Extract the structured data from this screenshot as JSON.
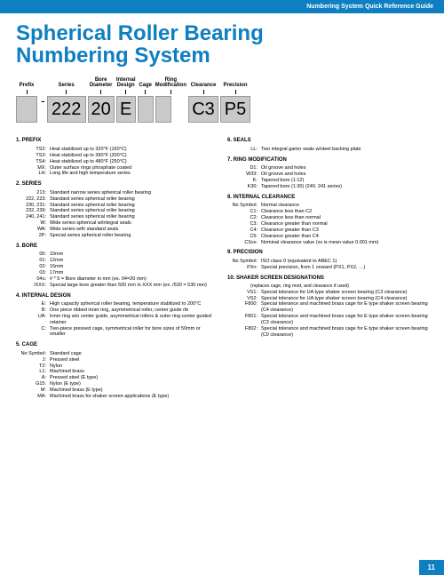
{
  "header": "Numbering System Quick Reference Guide",
  "title_l1": "Spherical Roller Bearing",
  "title_l2": "Numbering System",
  "pageNum": "11",
  "diag": {
    "labels": [
      "Prefix",
      "Series",
      "Bore\nDiameter",
      "Internal\nDesign",
      "Cage",
      "Ring\nModification",
      "Clearance",
      "Precision"
    ],
    "boxes": [
      "",
      "222",
      "20",
      "E",
      "",
      "",
      "C3",
      "P5"
    ]
  },
  "left": [
    {
      "h": "1.   PREFIX",
      "items": [
        [
          "TS2:",
          "Heat stabilized up to 320°F (160°C)"
        ],
        [
          "TS3:",
          "Heat stabilized up to 390°F (200°C)"
        ],
        [
          "TS4:",
          "Heat stabilized up to 480°F (250°C)"
        ],
        [
          "MX:",
          "Outer surface rings phosphate coated"
        ],
        [
          "LH:",
          "Long life and high temperature series"
        ]
      ]
    },
    {
      "h": "2.   SERIES",
      "items": [
        [
          "213:",
          "Standard narrow series spherical roller bearing"
        ],
        [
          "222, 223:",
          "Standard series spherical roller bearing"
        ],
        [
          "230, 231:",
          "Standard series spherical roller bearing"
        ],
        [
          "232, 239:",
          "Standard series spherical roller bearing"
        ],
        [
          "240, 241:",
          "Standard series spherical roller bearing"
        ],
        [
          "W:",
          "Wide series spherical w/integral seals"
        ],
        [
          "WA:",
          "Wide series with standard seals"
        ],
        [
          "2P:",
          "Special series spherical roller bearing"
        ]
      ]
    },
    {
      "h": "3.   BORE",
      "items": [
        [
          "00:",
          "10mm"
        ],
        [
          "01:",
          "12mm"
        ],
        [
          "02:",
          "15mm"
        ],
        [
          "03:",
          "17mm"
        ],
        [
          "04≤:",
          "# * 5 = Bore diameter in mm (ex. 04=20 mm)"
        ],
        [
          "/XXX:",
          "Special large bore greater than 500 mm in XXX mm (ex. /530 = 530 mm)"
        ]
      ]
    },
    {
      "h": "4.   INTERNAL DESIGN",
      "items": [
        [
          "E:",
          "High capacity spherical roller bearing, temperature stabilized to 200°C"
        ],
        [
          "B:",
          "One piece ribbed inner ring, asymmetrical roller, center guide rib"
        ],
        [
          "UA:",
          "Inner ring w/o center guide, asymmetrical rollers & outer ring center guided retainer"
        ],
        [
          "C:",
          "Two-piece pressed cage, symmetrical roller for bore sizes of 50mm or smaller"
        ]
      ]
    },
    {
      "h": "5.   CAGE",
      "items": [
        [
          "No Symbol:",
          "Standard cage"
        ],
        [
          "J:",
          "Pressed steel"
        ],
        [
          "T2:",
          "Nylon"
        ],
        [
          "L1:",
          "Machined brass"
        ],
        [
          "A:",
          "Pressed steel (E type)"
        ],
        [
          "G15:",
          "Nylon (E type)"
        ],
        [
          "M:",
          "Machined brass (E type)"
        ],
        [
          "MA:",
          "Machined brass for shaker screen applications (E type)"
        ]
      ]
    }
  ],
  "right": [
    {
      "h": "6.   SEALS",
      "items": [
        [
          "LL:",
          "Two integral garter seals w/steel backing plate"
        ]
      ]
    },
    {
      "h": "7.   RING MODIFICATION",
      "items": [
        [
          "D1:",
          "Oil groove and holes"
        ],
        [
          "W33:",
          "Oil groove and holes"
        ],
        [
          "K:",
          "Tapered bore (1:12)"
        ],
        [
          "K30:",
          "Tapered bore (1:30) (240, 241 series)"
        ]
      ]
    },
    {
      "h": "8.   INTERNAL CLEARANCE",
      "items": [
        [
          "No Symbol:",
          "Normal clearance"
        ],
        [
          "C1:",
          "Clearance less than C2"
        ],
        [
          "C2:",
          "Clearance less than normal"
        ],
        [
          "C3:",
          "Clearance greater than normal"
        ],
        [
          "C4:",
          "Clearance greater than C3"
        ],
        [
          "C5:",
          "Clearance greater than C4"
        ],
        [
          "CSxx:",
          "Nominal clearance value (xx is mean value 0.001 mm)"
        ]
      ]
    },
    {
      "h": "9.   PRECISION",
      "items": [
        [
          "No Symbol:",
          "ISO class 0 (equivalent to ABEC 1)"
        ],
        [
          "PXn:",
          "Special precision, from 1 onward (PX1, PX2, …)"
        ]
      ]
    },
    {
      "h": "10.  SHAKER SCREEN DESIGNATIONS",
      "sub": "(replaces cage, ring mod, and clearance if used)",
      "items": [
        [
          "VS1:",
          "Special tolerance for UA type shaker screen bearing (C3 clearance)"
        ],
        [
          "VS2:",
          "Special tolerance for UA type shaker screen bearing (C4 clearance)"
        ],
        [
          "F800:",
          "Special tolerance and machined brass cage for E type shaker screen bearing (C4 clearance)"
        ],
        [
          "F801:",
          "Special tolerance and machined brass cage for E type shaker screen bearing (C3 clearance)"
        ],
        [
          "F802:",
          "Special tolerance and machined brass cage for E type shaker screen bearing (C0 clearance)"
        ]
      ]
    }
  ]
}
